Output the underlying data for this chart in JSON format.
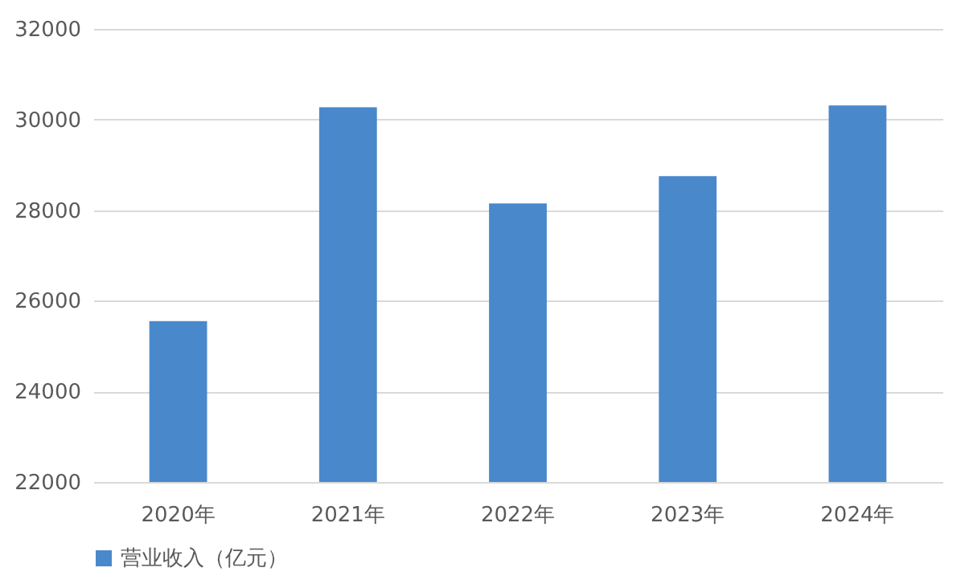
{
  "chart_data": {
    "type": "bar",
    "categories": [
      "2020年",
      "2021年",
      "2022年",
      "2023年",
      "2024年"
    ],
    "series": [
      {
        "name": "营业收入（亿元）",
        "color": "#4a88cc",
        "values": [
          25550,
          30270,
          28150,
          28750,
          30310
        ]
      }
    ],
    "ylim": [
      22000,
      32000
    ],
    "yticks": [
      22000,
      24000,
      26000,
      28000,
      30000,
      32000
    ],
    "grid": "y",
    "legend": "bottom"
  }
}
